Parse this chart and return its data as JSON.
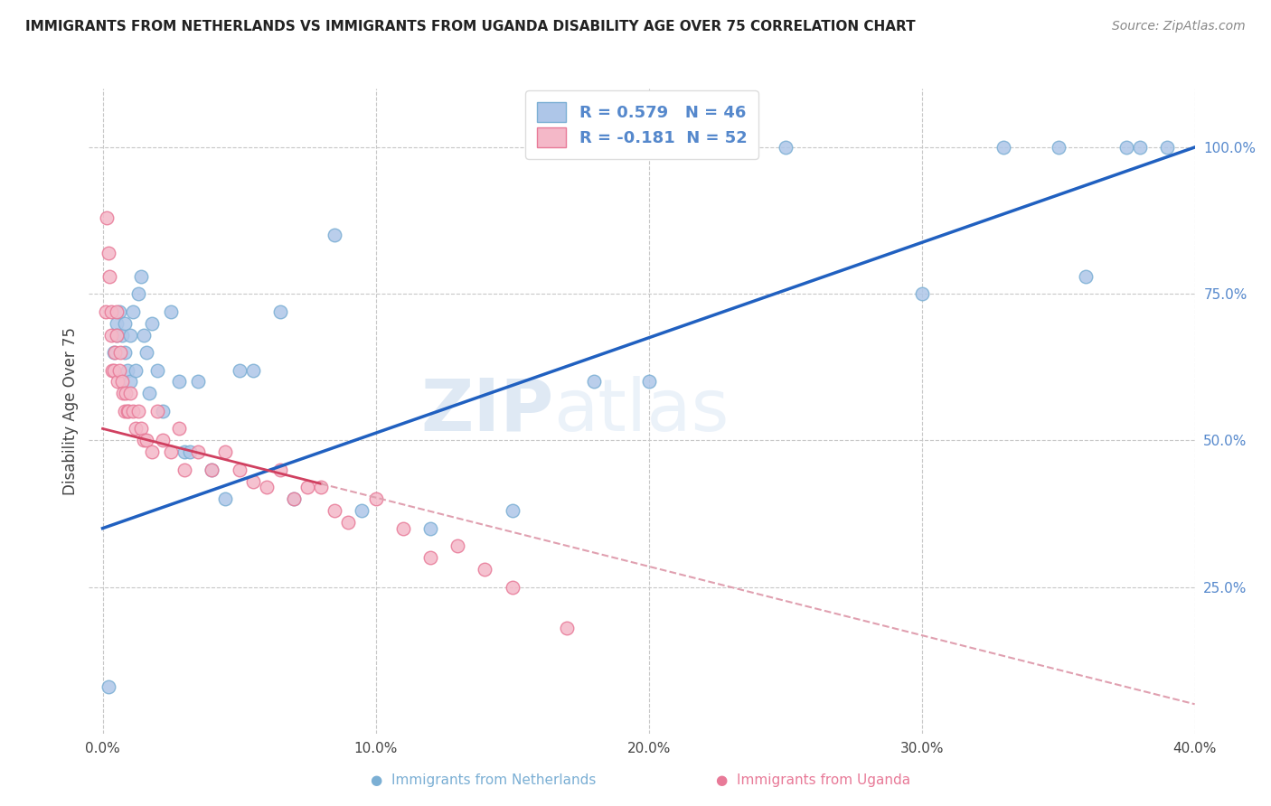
{
  "title": "IMMIGRANTS FROM NETHERLANDS VS IMMIGRANTS FROM UGANDA DISABILITY AGE OVER 75 CORRELATION CHART",
  "source": "Source: ZipAtlas.com",
  "ylabel": "Disability Age Over 75",
  "x_tick_labels": [
    "0.0%",
    "10.0%",
    "20.0%",
    "30.0%",
    "40.0%"
  ],
  "x_tick_values": [
    0.0,
    10.0,
    20.0,
    30.0,
    40.0
  ],
  "y_tick_labels_right": [
    "25.0%",
    "50.0%",
    "75.0%",
    "100.0%"
  ],
  "y_tick_values": [
    25.0,
    50.0,
    75.0,
    100.0
  ],
  "xlim": [
    -0.5,
    40.0
  ],
  "ylim": [
    0.0,
    110.0
  ],
  "netherlands_color": "#aec6e8",
  "netherlands_edge": "#7bafd4",
  "uganda_color": "#f4b8c8",
  "uganda_edge": "#e87a98",
  "trend_blue": "#2060c0",
  "trend_pink_solid": "#d04060",
  "trend_pink_dashed": "#e0a0b0",
  "background": "#ffffff",
  "grid_color": "#c8c8c8",
  "watermark_zip": "ZIP",
  "watermark_atlas": "atlas",
  "title_color": "#222222",
  "source_color": "#888888",
  "right_axis_color": "#5588cc",
  "netherlands_x": [
    0.2,
    0.4,
    0.5,
    0.5,
    0.6,
    0.7,
    0.8,
    0.8,
    0.9,
    1.0,
    1.0,
    1.1,
    1.2,
    1.3,
    1.4,
    1.5,
    1.6,
    1.7,
    1.8,
    2.0,
    2.2,
    2.5,
    2.8,
    3.0,
    3.2,
    3.5,
    4.0,
    4.5,
    5.0,
    5.5,
    6.5,
    7.0,
    8.5,
    9.5,
    12.0,
    18.0,
    33.0,
    35.0,
    36.0,
    37.5,
    38.0,
    39.0,
    15.0,
    20.0,
    25.0,
    30.0
  ],
  "netherlands_y": [
    8.0,
    65.0,
    70.0,
    68.0,
    72.0,
    68.0,
    65.0,
    70.0,
    62.0,
    68.0,
    60.0,
    72.0,
    62.0,
    75.0,
    78.0,
    68.0,
    65.0,
    58.0,
    70.0,
    62.0,
    55.0,
    72.0,
    60.0,
    48.0,
    48.0,
    60.0,
    45.0,
    40.0,
    62.0,
    62.0,
    72.0,
    40.0,
    85.0,
    38.0,
    35.0,
    60.0,
    100.0,
    100.0,
    78.0,
    100.0,
    100.0,
    100.0,
    38.0,
    60.0,
    100.0,
    75.0
  ],
  "uganda_x": [
    0.1,
    0.15,
    0.2,
    0.25,
    0.3,
    0.3,
    0.35,
    0.4,
    0.45,
    0.5,
    0.5,
    0.55,
    0.6,
    0.65,
    0.7,
    0.75,
    0.8,
    0.85,
    0.9,
    0.95,
    1.0,
    1.1,
    1.2,
    1.3,
    1.4,
    1.5,
    1.6,
    1.8,
    2.0,
    2.2,
    2.5,
    2.8,
    3.0,
    3.5,
    4.0,
    4.5,
    5.0,
    5.5,
    6.0,
    6.5,
    7.0,
    7.5,
    8.0,
    8.5,
    9.0,
    10.0,
    11.0,
    12.0,
    13.0,
    14.0,
    15.0,
    17.0
  ],
  "uganda_y": [
    72.0,
    88.0,
    82.0,
    78.0,
    68.0,
    72.0,
    62.0,
    62.0,
    65.0,
    68.0,
    72.0,
    60.0,
    62.0,
    65.0,
    60.0,
    58.0,
    55.0,
    58.0,
    55.0,
    55.0,
    58.0,
    55.0,
    52.0,
    55.0,
    52.0,
    50.0,
    50.0,
    48.0,
    55.0,
    50.0,
    48.0,
    52.0,
    45.0,
    48.0,
    45.0,
    48.0,
    45.0,
    43.0,
    42.0,
    45.0,
    40.0,
    42.0,
    42.0,
    38.0,
    36.0,
    40.0,
    35.0,
    30.0,
    32.0,
    28.0,
    25.0,
    18.0
  ],
  "nl_trend_x0": 0.0,
  "nl_trend_y0": 35.0,
  "nl_trend_x1": 40.0,
  "nl_trend_y1": 100.0,
  "ug_trend_x0": 0.0,
  "ug_trend_y0": 52.0,
  "ug_trend_x1": 40.0,
  "ug_trend_y1": 5.0,
  "ug_solid_end": 8.0
}
